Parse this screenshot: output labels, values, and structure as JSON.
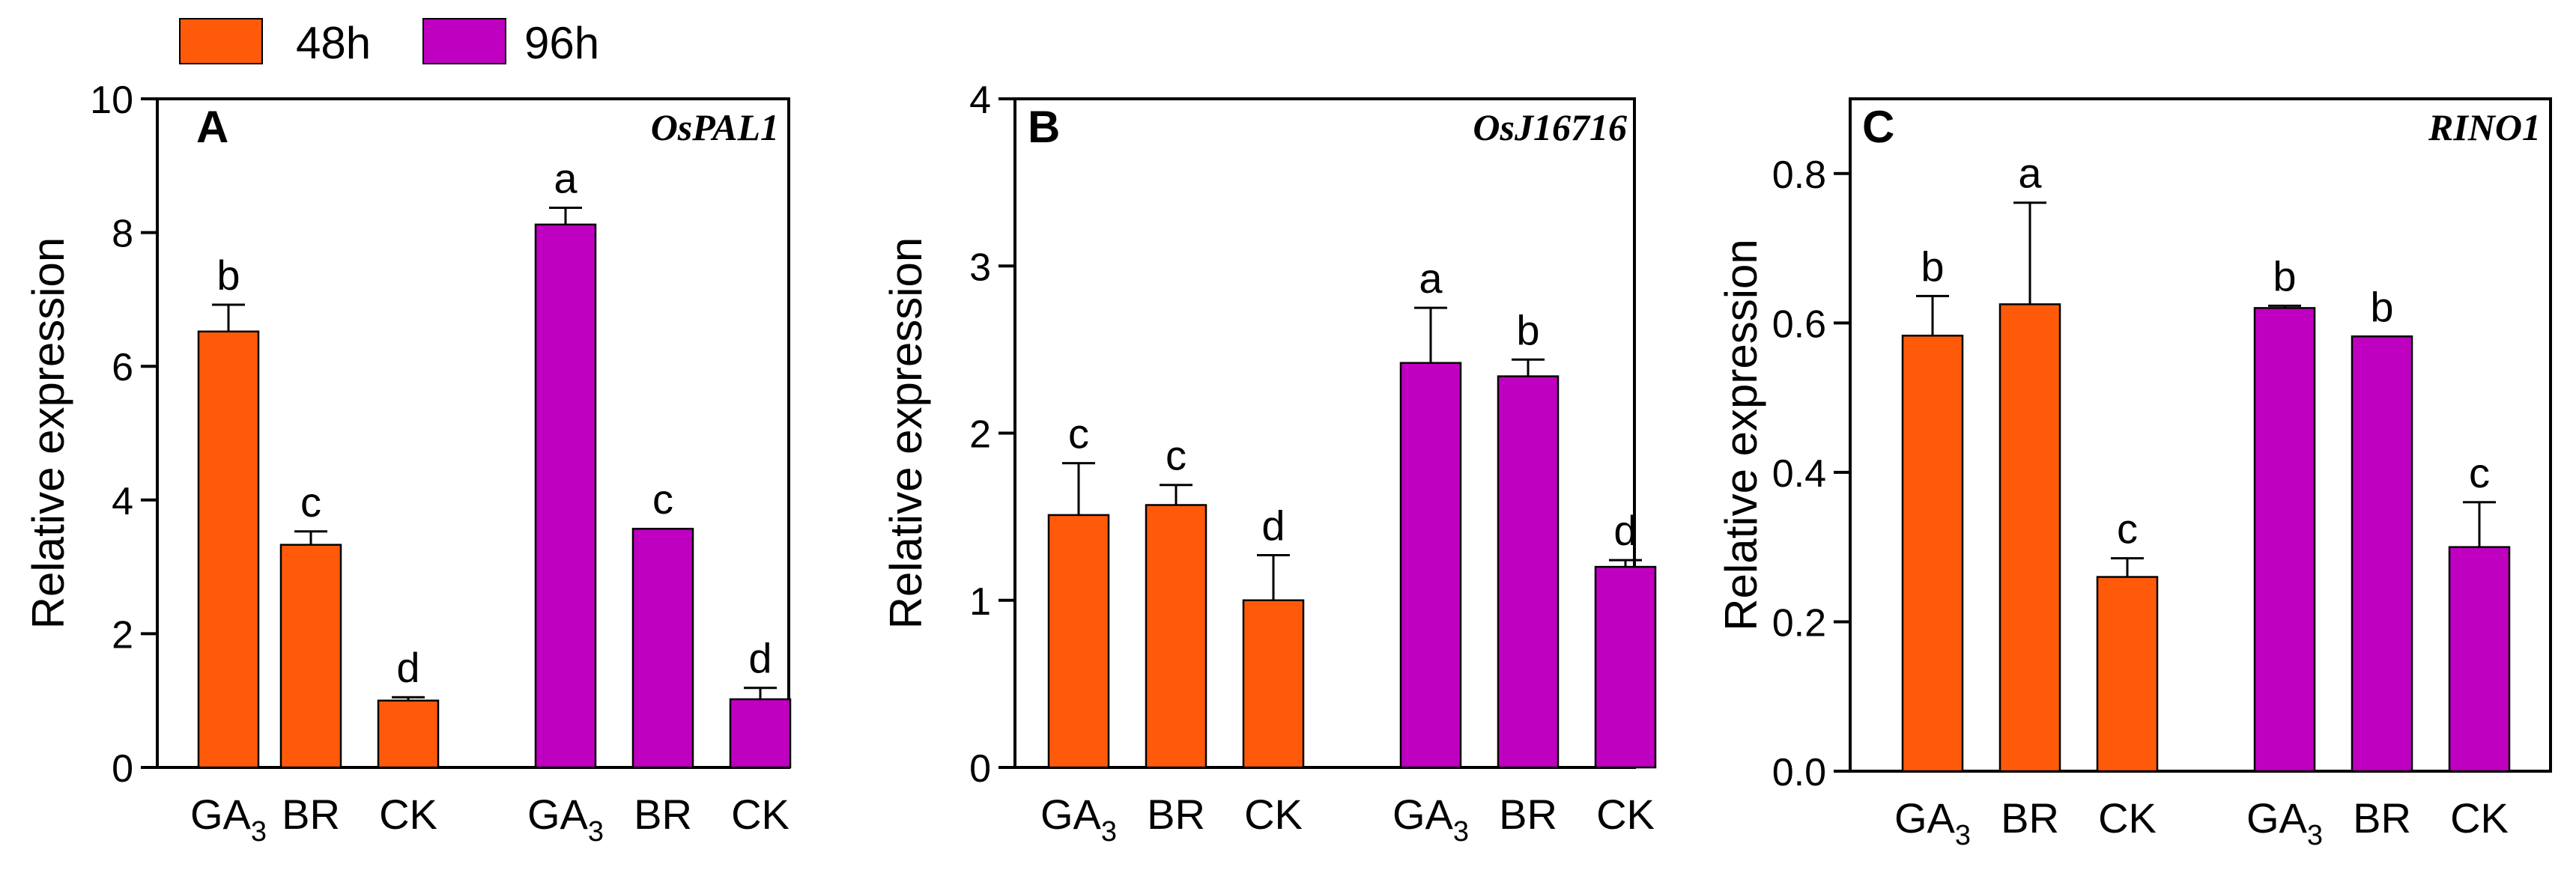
{
  "legend": [
    {
      "label": "48h",
      "color": "#ff5a0a"
    },
    {
      "label": "96h",
      "color": "#c000c0"
    }
  ],
  "chart_data": [
    {
      "type": "bar",
      "panel": "A",
      "gene": "OsPAL1",
      "ylabel": "Relative expression",
      "ylim": [
        0,
        10
      ],
      "yticks": [
        "0",
        "2",
        "4",
        "6",
        "8",
        "10"
      ],
      "groups": [
        {
          "name": "48h",
          "categories": [
            "GA3",
            "BR",
            "CK"
          ],
          "values": [
            6.52,
            3.33,
            1.0
          ],
          "errors": [
            0.4,
            0.2,
            0.05
          ],
          "letters": [
            "b",
            "c",
            "d"
          ]
        },
        {
          "name": "96h",
          "categories": [
            "GA3",
            "BR",
            "CK"
          ],
          "values": [
            8.12,
            3.57,
            1.02
          ],
          "errors": [
            0.25,
            0.0,
            0.17
          ],
          "letters": [
            "a",
            "c",
            "d"
          ]
        }
      ]
    },
    {
      "type": "bar",
      "panel": "B",
      "gene": "OsJ16716",
      "ylabel": "Relative expression",
      "ylim": [
        0,
        4
      ],
      "yticks": [
        "0",
        "1",
        "2",
        "3",
        "4"
      ],
      "groups": [
        {
          "name": "48h",
          "categories": [
            "GA3",
            "BR",
            "CK"
          ],
          "values": [
            1.51,
            1.57,
            1.0
          ],
          "errors": [
            0.31,
            0.12,
            0.27
          ],
          "letters": [
            "c",
            "c",
            "d"
          ]
        },
        {
          "name": "96h",
          "categories": [
            "GA3",
            "BR",
            "CK"
          ],
          "values": [
            2.42,
            2.34,
            1.2
          ],
          "errors": [
            0.33,
            0.1,
            0.04
          ],
          "letters": [
            "a",
            "b",
            "d"
          ]
        }
      ]
    },
    {
      "type": "bar",
      "panel": "C",
      "gene": "RINO1",
      "ylabel": "Relative expression",
      "ylim": [
        0,
        0.9
      ],
      "yticks": [
        "0.0",
        "0.2",
        "0.4",
        "0.6",
        "0.8"
      ],
      "groups": [
        {
          "name": "48h",
          "categories": [
            "GA3",
            "BR",
            "CK"
          ],
          "values": [
            0.583,
            0.625,
            0.26
          ],
          "errors": [
            0.053,
            0.136,
            0.025
          ],
          "letters": [
            "b",
            "a",
            "c"
          ]
        },
        {
          "name": "96h",
          "categories": [
            "GA3",
            "BR",
            "CK"
          ],
          "values": [
            0.62,
            0.582,
            0.3
          ],
          "errors": [
            0.003,
            0.0,
            0.06
          ],
          "letters": [
            "b",
            "b",
            "c"
          ]
        }
      ]
    }
  ]
}
